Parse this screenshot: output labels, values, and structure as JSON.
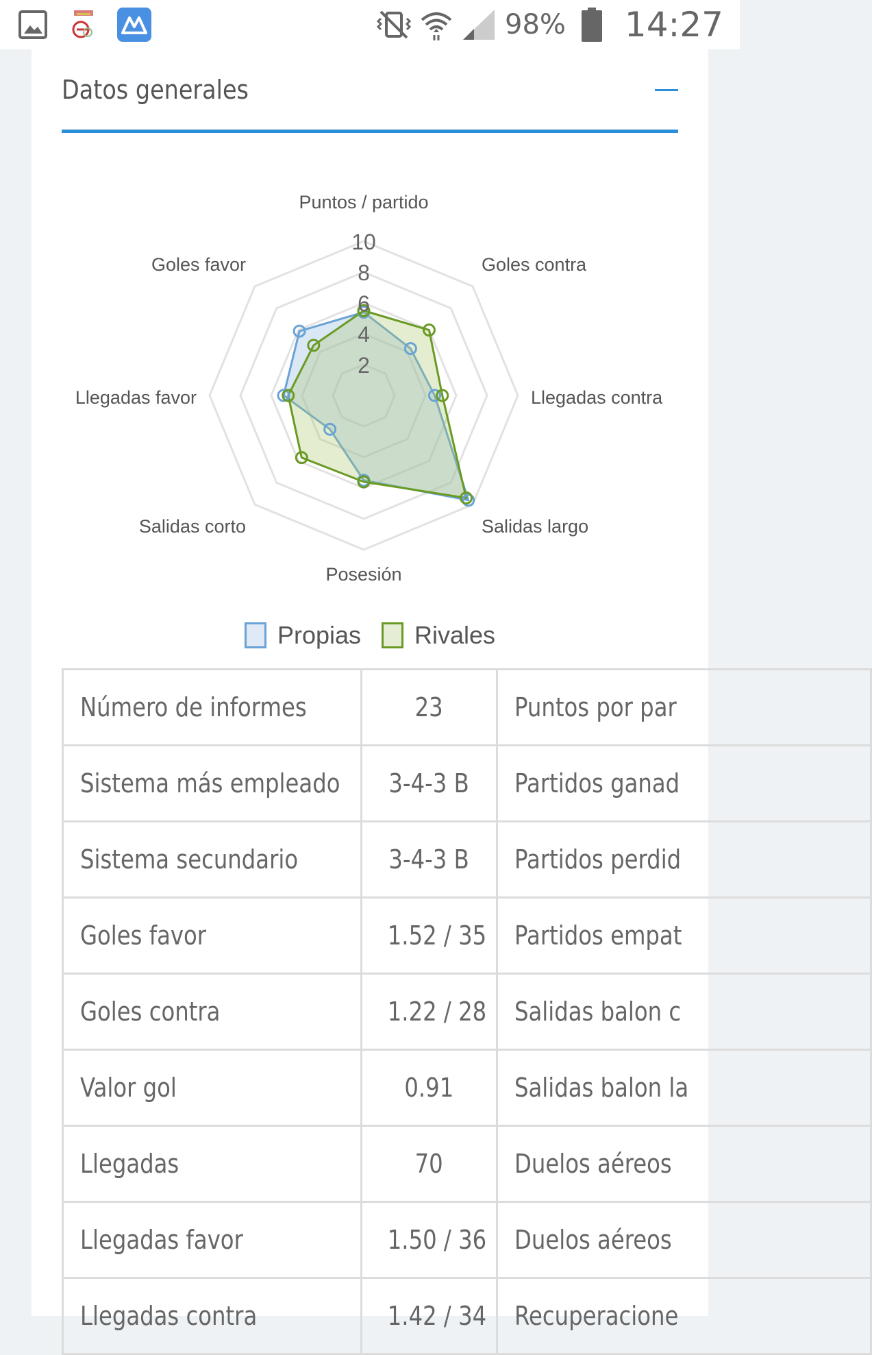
{
  "status_bar": {
    "battery": "98%",
    "time": "14:27",
    "icons": [
      "gallery-icon",
      "app-logo-icon",
      "app-m-icon",
      "vibrate-mute-icon",
      "wifi-icon",
      "signal-icon",
      "battery-icon"
    ]
  },
  "section": {
    "title": "Datos generales",
    "collapse_icon": "minus-icon",
    "accent": "#2a8ed9"
  },
  "chart_data": {
    "type": "radar",
    "axes": [
      "Puntos / partido",
      "Goles contra",
      "Llegadas contra",
      "Salidas largo",
      "Posesión",
      "Salidas corto",
      "Llegadas favor",
      "Goles favor"
    ],
    "scale_labels": [
      "2",
      "4",
      "6",
      "8",
      "10"
    ],
    "range": [
      0,
      10
    ],
    "series": [
      {
        "name": "Propias",
        "color": "#6aa3d6",
        "fill": "rgba(148,190,230,0.35)",
        "values": [
          5.4,
          4.3,
          4.6,
          9.6,
          5.5,
          3.1,
          5.2,
          5.9
        ]
      },
      {
        "name": "Rivales",
        "color": "#6a9a24",
        "fill": "rgba(170,200,110,0.32)",
        "values": [
          5.5,
          6.0,
          5.1,
          9.4,
          5.6,
          5.7,
          4.9,
          4.6
        ]
      }
    ],
    "legend_position": "bottom"
  },
  "table": {
    "rows": [
      [
        "Número de informes",
        "23",
        "Puntos por par"
      ],
      [
        "Sistema más empleado",
        "3-4-3 B",
        "Partidos ganad"
      ],
      [
        "Sistema secundario",
        "3-4-3 B",
        "Partidos perdid"
      ],
      [
        "Goles favor",
        "1.52 / 35",
        "Partidos empat"
      ],
      [
        "Goles contra",
        "1.22 / 28",
        "Salidas balon c"
      ],
      [
        "Valor gol",
        "0.91",
        "Salidas balon la"
      ],
      [
        "Llegadas",
        "70",
        "Duelos aéreos"
      ],
      [
        "Llegadas favor",
        "1.50 / 36",
        "Duelos aéreos"
      ],
      [
        "Llegadas contra",
        "1.42 / 34",
        "Recuperacione"
      ]
    ]
  }
}
